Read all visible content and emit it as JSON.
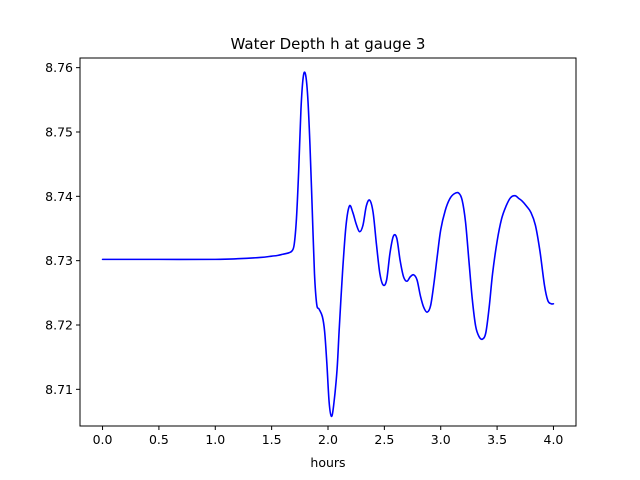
{
  "chart_data": {
    "type": "line",
    "title": "Water Depth h at gauge 3",
    "xlabel": "hours",
    "ylabel": "",
    "xlim": [
      -0.2,
      4.2
    ],
    "ylim": [
      8.7043,
      8.7615
    ],
    "xticks": [
      0.0,
      0.5,
      1.0,
      1.5,
      2.0,
      2.5,
      3.0,
      3.5,
      4.0
    ],
    "xtick_labels": [
      "0.0",
      "0.5",
      "1.0",
      "1.5",
      "2.0",
      "2.5",
      "3.0",
      "3.5",
      "4.0"
    ],
    "yticks": [
      8.71,
      8.72,
      8.73,
      8.74,
      8.75,
      8.76
    ],
    "ytick_labels": [
      "8.71",
      "8.72",
      "8.73",
      "8.74",
      "8.75",
      "8.76"
    ],
    "grid": false,
    "legend": "none",
    "series": [
      {
        "color": "#0000ff",
        "x": [
          0.0,
          0.5,
          1.0,
          1.2,
          1.4,
          1.5,
          1.55,
          1.6,
          1.65,
          1.68,
          1.7,
          1.72,
          1.74,
          1.76,
          1.78,
          1.8,
          1.82,
          1.84,
          1.86,
          1.88,
          1.9,
          1.92,
          1.95,
          1.97,
          1.99,
          2.01,
          2.03,
          2.05,
          2.08,
          2.1,
          2.13,
          2.16,
          2.19,
          2.22,
          2.25,
          2.28,
          2.31,
          2.34,
          2.37,
          2.4,
          2.43,
          2.46,
          2.49,
          2.52,
          2.55,
          2.58,
          2.61,
          2.64,
          2.67,
          2.7,
          2.73,
          2.76,
          2.79,
          2.82,
          2.85,
          2.88,
          2.91,
          2.94,
          2.97,
          3.0,
          3.04,
          3.08,
          3.12,
          3.16,
          3.19,
          3.22,
          3.25,
          3.28,
          3.31,
          3.34,
          3.37,
          3.4,
          3.43,
          3.46,
          3.5,
          3.54,
          3.58,
          3.62,
          3.66,
          3.69,
          3.72,
          3.76,
          3.8,
          3.84,
          3.88,
          3.92,
          3.95,
          3.98,
          4.0
        ],
        "y": [
          8.7302,
          8.7302,
          8.7302,
          8.7303,
          8.7305,
          8.7307,
          8.7308,
          8.731,
          8.7312,
          8.7315,
          8.7325,
          8.7365,
          8.744,
          8.7535,
          8.7585,
          8.759,
          8.7555,
          8.748,
          8.738,
          8.728,
          8.7232,
          8.7225,
          8.7213,
          8.719,
          8.714,
          8.708,
          8.7058,
          8.7075,
          8.713,
          8.7195,
          8.7285,
          8.7355,
          8.7385,
          8.7375,
          8.7357,
          8.7345,
          8.7355,
          8.7385,
          8.7394,
          8.7375,
          8.7325,
          8.728,
          8.7262,
          8.727,
          8.7312,
          8.7338,
          8.7335,
          8.73,
          8.7275,
          8.7268,
          8.7275,
          8.7278,
          8.727,
          8.7245,
          8.7227,
          8.722,
          8.723,
          8.7265,
          8.7308,
          8.7348,
          8.7378,
          8.7396,
          8.7404,
          8.7405,
          8.7394,
          8.736,
          8.73,
          8.724,
          8.7198,
          8.7182,
          8.7178,
          8.7188,
          8.7228,
          8.728,
          8.733,
          8.7365,
          8.7385,
          8.7398,
          8.7401,
          8.7397,
          8.7393,
          8.7385,
          8.7375,
          8.7355,
          8.7315,
          8.7262,
          8.7238,
          8.7233,
          8.7233
        ]
      }
    ]
  }
}
